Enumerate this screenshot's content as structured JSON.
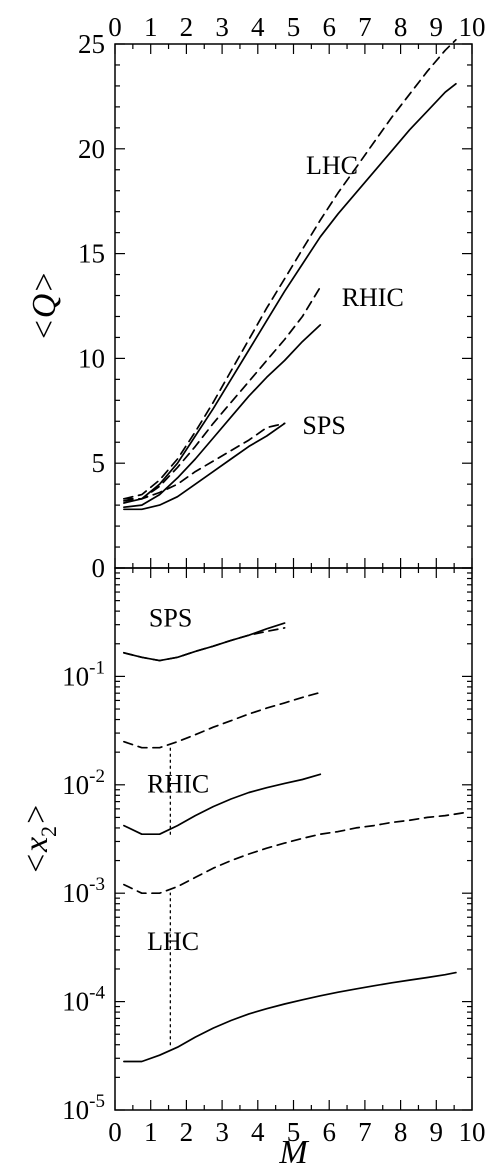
{
  "chart_data": [
    {
      "type": "line",
      "panel": "top",
      "xlabel": "",
      "ylabel": "<Q>",
      "xlim": [
        0,
        10
      ],
      "ylim": [
        0,
        25
      ],
      "x_ticks": [
        0,
        1,
        2,
        3,
        4,
        5,
        6,
        7,
        8,
        9,
        10
      ],
      "y_ticks": [
        0,
        5,
        10,
        15,
        20,
        25
      ],
      "grid": false,
      "series": [
        {
          "style": "solid",
          "label": "LHC",
          "x": [
            0.25,
            0.75,
            1.25,
            1.75,
            2.25,
            2.75,
            3.25,
            3.75,
            4.25,
            4.75,
            5.25,
            5.75,
            6.25,
            6.75,
            7.25,
            7.75,
            8.25,
            8.75,
            9.25,
            9.55
          ],
          "y": [
            3.1,
            3.3,
            4.0,
            5.0,
            6.3,
            7.6,
            9.0,
            10.4,
            11.8,
            13.2,
            14.5,
            15.8,
            16.9,
            17.9,
            18.9,
            19.9,
            20.9,
            21.8,
            22.7,
            23.1
          ]
        },
        {
          "style": "dashed",
          "label": "LHC",
          "x": [
            0.25,
            0.75,
            1.25,
            1.75,
            2.25,
            2.75,
            3.25,
            3.75,
            4.25,
            4.75,
            5.25,
            5.75,
            6.25,
            6.75,
            7.25,
            7.75,
            8.25,
            8.75,
            9.25,
            9.55
          ],
          "y": [
            3.3,
            3.5,
            4.2,
            5.2,
            6.5,
            7.9,
            9.4,
            10.9,
            12.4,
            13.8,
            15.2,
            16.6,
            17.9,
            19.1,
            20.3,
            21.5,
            22.6,
            23.7,
            24.7,
            25.2
          ]
        },
        {
          "style": "solid",
          "label": "RHIC",
          "x": [
            0.25,
            0.75,
            1.25,
            1.75,
            2.25,
            2.75,
            3.25,
            3.75,
            4.25,
            4.75,
            5.25,
            5.75
          ],
          "y": [
            2.9,
            3.0,
            3.5,
            4.3,
            5.2,
            6.2,
            7.2,
            8.2,
            9.1,
            9.9,
            10.8,
            11.6
          ]
        },
        {
          "style": "dashed",
          "label": "RHIC",
          "x": [
            0.25,
            0.75,
            1.25,
            1.75,
            2.25,
            2.75,
            3.25,
            3.75,
            4.25,
            4.75,
            5.25,
            5.75
          ],
          "y": [
            3.2,
            3.3,
            3.9,
            4.8,
            5.8,
            6.9,
            7.9,
            8.9,
            9.9,
            10.9,
            12.0,
            13.4
          ]
        },
        {
          "style": "solid",
          "label": "SPS",
          "x": [
            0.25,
            0.75,
            1.25,
            1.75,
            2.25,
            2.75,
            3.25,
            3.75,
            4.25,
            4.75
          ],
          "y": [
            2.8,
            2.8,
            3.0,
            3.4,
            4.0,
            4.6,
            5.2,
            5.8,
            6.3,
            6.9
          ]
        },
        {
          "style": "dashed",
          "label": "SPS",
          "x": [
            0.25,
            0.75,
            1.25,
            1.75,
            2.25,
            2.75,
            3.25,
            3.75,
            4.25,
            4.5,
            4.75
          ],
          "y": [
            3.3,
            3.3,
            3.6,
            4.0,
            4.6,
            5.1,
            5.6,
            6.1,
            6.7,
            6.8,
            6.9
          ]
        }
      ],
      "annotations": [
        {
          "text": "LHC",
          "x": 5.35,
          "y": 18.8
        },
        {
          "text": "RHIC",
          "x": 6.35,
          "y": 12.5
        },
        {
          "text": "SPS",
          "x": 5.25,
          "y": 6.4
        }
      ]
    },
    {
      "type": "line",
      "panel": "bottom",
      "xlabel": "M",
      "ylabel": "<x2>",
      "xlim": [
        0,
        10
      ],
      "ylim": [
        1e-05,
        1
      ],
      "yscale": "log",
      "x_ticks": [
        0,
        1,
        2,
        3,
        4,
        5,
        6,
        7,
        8,
        9,
        10
      ],
      "y_tick_labels": [
        {
          "base": "10",
          "exp": "-1",
          "value": 0.1
        },
        {
          "base": "10",
          "exp": "-2",
          "value": 0.01
        },
        {
          "base": "10",
          "exp": "-3",
          "value": 0.001
        },
        {
          "base": "10",
          "exp": "-4",
          "value": 0.0001
        },
        {
          "base": "10",
          "exp": "-5",
          "value": 1e-05
        }
      ],
      "grid": false,
      "series": [
        {
          "style": "solid",
          "label": "SPS",
          "x": [
            0.25,
            0.75,
            1.25,
            1.75,
            2.25,
            2.75,
            3.25,
            3.75,
            4.25,
            4.75
          ],
          "y": [
            0.165,
            0.15,
            0.14,
            0.15,
            0.17,
            0.19,
            0.215,
            0.24,
            0.275,
            0.31
          ]
        },
        {
          "style": "dashed",
          "label": "SPS",
          "x": [
            0.25,
            0.75,
            1.25,
            1.75,
            2.25,
            2.75,
            3.25,
            3.75,
            4.25,
            4.75
          ],
          "y": [
            0.165,
            0.15,
            0.14,
            0.15,
            0.17,
            0.19,
            0.215,
            0.24,
            0.26,
            0.28
          ]
        },
        {
          "style": "dashed",
          "label": "RHIC",
          "x": [
            0.25,
            0.75,
            1.25,
            1.75,
            2.25,
            2.75,
            3.25,
            3.75,
            4.25,
            4.75,
            5.25,
            5.75
          ],
          "y": [
            0.025,
            0.022,
            0.022,
            0.025,
            0.029,
            0.034,
            0.039,
            0.045,
            0.051,
            0.057,
            0.064,
            0.071
          ]
        },
        {
          "style": "solid",
          "label": "RHIC",
          "x": [
            0.25,
            0.75,
            1.25,
            1.75,
            2.25,
            2.75,
            3.25,
            3.75,
            4.25,
            4.75,
            5.25,
            5.75
          ],
          "y": [
            0.0042,
            0.0035,
            0.0035,
            0.0042,
            0.0052,
            0.0063,
            0.0074,
            0.0085,
            0.0094,
            0.0103,
            0.0112,
            0.0125
          ]
        },
        {
          "style": "dashed",
          "label": "LHC",
          "x": [
            0.25,
            0.75,
            1.25,
            1.75,
            2.25,
            2.75,
            3.25,
            3.75,
            4.25,
            4.75,
            5.25,
            5.75,
            6.25,
            6.75,
            7.25,
            7.75,
            8.25,
            8.75,
            9.25,
            9.75
          ],
          "y": [
            0.0012,
            0.001,
            0.001,
            0.00115,
            0.0014,
            0.0017,
            0.002,
            0.0023,
            0.0026,
            0.0029,
            0.0032,
            0.0035,
            0.0037,
            0.004,
            0.0042,
            0.0045,
            0.0047,
            0.005,
            0.0052,
            0.0055
          ]
        },
        {
          "style": "solid",
          "label": "LHC",
          "x": [
            0.25,
            0.75,
            1.25,
            1.75,
            2.25,
            2.75,
            3.25,
            3.75,
            4.25,
            4.75,
            5.25,
            5.75,
            6.25,
            6.75,
            7.25,
            7.75,
            8.25,
            8.75,
            9.25,
            9.55
          ],
          "y": [
            2.8e-05,
            2.8e-05,
            3.2e-05,
            3.8e-05,
            4.7e-05,
            5.7e-05,
            6.7e-05,
            7.7e-05,
            8.6e-05,
            9.5e-05,
            0.000104,
            0.000113,
            0.000122,
            0.000131,
            0.00014,
            0.000149,
            0.000158,
            0.000167,
            0.000177,
            0.000185
          ]
        }
      ],
      "guides": [
        {
          "style": "dotted",
          "x": 1.55,
          "y_from": 0.0035,
          "y_to": 0.022
        },
        {
          "style": "dotted",
          "x": 1.55,
          "y_from": 4e-05,
          "y_to": 0.001
        }
      ],
      "annotations": [
        {
          "text": "SPS",
          "x": 0.95,
          "y": 0.29
        },
        {
          "text": "RHIC",
          "x": 0.9,
          "y": 0.0085
        },
        {
          "text": "LHC",
          "x": 0.9,
          "y": 0.0003
        }
      ]
    }
  ]
}
